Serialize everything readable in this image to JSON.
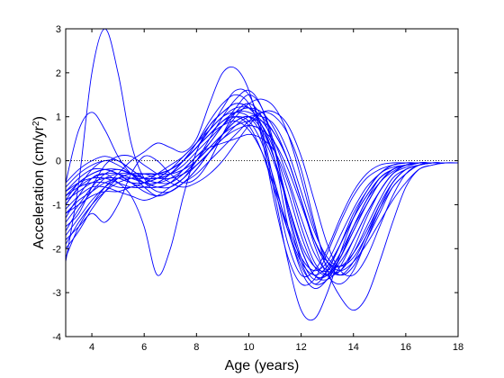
{
  "chart_data": {
    "type": "line",
    "xlabel": "Age (years)",
    "ylabel_main": "Acceleration (cm/yr",
    "ylabel_sup": "2",
    "ylabel_close": ")",
    "xlim": [
      3,
      18
    ],
    "ylim": [
      -4,
      3
    ],
    "x_ticks": [
      4,
      6,
      8,
      10,
      12,
      14,
      16,
      18
    ],
    "y_ticks": [
      -4,
      -3,
      -2,
      -1,
      0,
      1,
      2,
      3
    ],
    "x_tick_labels": [
      "4",
      "6",
      "8",
      "10",
      "12",
      "14",
      "16",
      "18"
    ],
    "y_tick_labels": [
      "-4",
      "-3",
      "-2",
      "-1",
      "0",
      "1",
      "2",
      "3"
    ],
    "zero_line": {
      "y": 0,
      "style": "dotted"
    },
    "grid": false,
    "line_color": "#0000ff",
    "x": [
      3,
      3.5,
      4,
      4.5,
      5,
      5.5,
      6,
      6.5,
      7,
      7.5,
      8,
      8.5,
      9,
      9.5,
      10,
      10.5,
      11,
      11.5,
      12,
      12.5,
      13,
      13.5,
      14,
      14.5,
      15,
      15.5,
      16,
      16.5,
      17,
      17.5,
      18
    ],
    "series": [
      {
        "values": [
          -2.3,
          -0.5,
          2.0,
          3.0,
          2.0,
          0.4,
          -0.4,
          -0.6,
          -0.5,
          -0.3,
          0.0,
          0.4,
          0.8,
          1.2,
          1.5,
          1.2,
          0.3,
          -1.2,
          -2.3,
          -2.8,
          -2.5,
          -1.9,
          -1.3,
          -0.8,
          -0.4,
          -0.2,
          -0.1,
          -0.05,
          -0.05,
          -0.05,
          -0.05
        ]
      },
      {
        "values": [
          -1.3,
          -0.8,
          -0.4,
          -0.3,
          -0.5,
          -0.8,
          -1.5,
          -2.6,
          -2.0,
          -0.8,
          0.2,
          0.8,
          1.1,
          1.3,
          1.2,
          0.8,
          0.0,
          -1.5,
          -2.5,
          -2.9,
          -2.7,
          -2.2,
          -1.6,
          -1.0,
          -0.5,
          -0.2,
          -0.1,
          -0.05,
          -0.05,
          -0.05,
          -0.05
        ]
      },
      {
        "values": [
          -2.2,
          -1.5,
          -1.0,
          -0.6,
          -0.3,
          0.0,
          0.2,
          0.4,
          0.3,
          0.2,
          0.5,
          1.3,
          2.0,
          2.1,
          1.6,
          0.5,
          -1.0,
          -2.2,
          -2.8,
          -2.7,
          -2.1,
          -1.4,
          -0.8,
          -0.4,
          -0.2,
          -0.1,
          -0.05,
          -0.05,
          -0.05,
          -0.05,
          -0.05
        ]
      },
      {
        "values": [
          -0.5,
          0.7,
          1.1,
          0.7,
          0.1,
          -0.3,
          -0.5,
          -0.5,
          -0.3,
          0.0,
          0.3,
          0.7,
          1.0,
          1.2,
          1.2,
          1.0,
          0.6,
          0.0,
          -0.9,
          -1.8,
          -2.4,
          -2.6,
          -2.3,
          -1.7,
          -1.0,
          -0.5,
          -0.2,
          -0.1,
          -0.05,
          -0.05,
          -0.05
        ]
      },
      {
        "values": [
          -1.0,
          -0.6,
          -0.2,
          0.0,
          -0.1,
          -0.3,
          -0.6,
          -0.8,
          -0.7,
          -0.5,
          -0.3,
          0.0,
          0.3,
          0.6,
          0.9,
          1.1,
          1.0,
          0.6,
          -0.2,
          -1.4,
          -2.5,
          -3.1,
          -3.4,
          -3.1,
          -2.3,
          -1.4,
          -0.6,
          -0.2,
          -0.1,
          -0.05,
          -0.05
        ]
      },
      {
        "values": [
          -0.8,
          -0.5,
          -0.3,
          -0.2,
          -0.2,
          -0.3,
          -0.4,
          -0.4,
          -0.3,
          0.0,
          0.4,
          0.9,
          1.3,
          1.5,
          1.3,
          0.6,
          -0.8,
          -2.3,
          -3.4,
          -3.6,
          -3.0,
          -2.1,
          -1.3,
          -0.7,
          -0.3,
          -0.15,
          -0.1,
          -0.05,
          -0.05,
          -0.05,
          -0.05
        ]
      },
      {
        "values": [
          -1.5,
          -1.2,
          -0.6,
          -0.1,
          0.1,
          0.1,
          -0.1,
          -0.3,
          -0.5,
          -0.6,
          -0.5,
          -0.3,
          0.0,
          0.4,
          0.8,
          1.1,
          1.1,
          0.8,
          0.1,
          -0.9,
          -1.9,
          -2.5,
          -2.6,
          -2.2,
          -1.5,
          -0.8,
          -0.3,
          -0.1,
          -0.05,
          -0.05,
          -0.05
        ]
      },
      {
        "values": [
          -1.8,
          -1.5,
          -1.2,
          -1.4,
          -1.0,
          -0.3,
          0.1,
          0.0,
          -0.3,
          -0.5,
          -0.4,
          0.0,
          0.6,
          1.1,
          1.3,
          1.0,
          0.2,
          -1.1,
          -2.2,
          -2.7,
          -2.5,
          -1.9,
          -1.2,
          -0.7,
          -0.3,
          -0.1,
          -0.05,
          -0.05,
          -0.05,
          -0.05,
          -0.05
        ]
      },
      {
        "values": [
          -1.0,
          -0.6,
          -0.4,
          -0.3,
          -0.3,
          -0.4,
          -0.5,
          -0.6,
          -0.6,
          -0.4,
          0.0,
          0.5,
          1.0,
          1.4,
          1.6,
          1.2,
          0.2,
          -1.0,
          -2.0,
          -2.6,
          -2.6,
          -2.2,
          -1.6,
          -1.0,
          -0.5,
          -0.2,
          -0.1,
          -0.05,
          -0.05,
          -0.05,
          -0.05
        ]
      },
      {
        "values": [
          -0.6,
          -0.3,
          -0.1,
          0.0,
          0.0,
          -0.2,
          -0.4,
          -0.5,
          -0.5,
          -0.3,
          0.0,
          0.3,
          0.6,
          0.8,
          0.9,
          0.9,
          0.6,
          0.0,
          -0.9,
          -1.9,
          -2.6,
          -2.8,
          -2.5,
          -1.8,
          -1.1,
          -0.5,
          -0.2,
          -0.1,
          -0.05,
          -0.05,
          -0.05
        ]
      },
      {
        "values": [
          -1.2,
          -0.9,
          -0.7,
          -0.5,
          -0.4,
          -0.4,
          -0.4,
          -0.3,
          -0.2,
          0.0,
          0.3,
          0.7,
          1.2,
          1.6,
          1.5,
          0.7,
          -0.6,
          -1.9,
          -2.6,
          -2.5,
          -2.0,
          -1.3,
          -0.7,
          -0.3,
          -0.1,
          -0.05,
          -0.05,
          -0.05,
          -0.05,
          -0.05,
          -0.05
        ]
      },
      {
        "values": [
          -0.7,
          -0.4,
          -0.2,
          -0.2,
          -0.3,
          -0.5,
          -0.6,
          -0.6,
          -0.5,
          -0.2,
          0.1,
          0.3,
          0.4,
          0.5,
          0.6,
          0.5,
          0.2,
          -0.5,
          -1.5,
          -2.3,
          -2.6,
          -2.5,
          -2.0,
          -1.3,
          -0.7,
          -0.3,
          -0.1,
          -0.05,
          -0.05,
          -0.05,
          -0.05
        ]
      },
      {
        "values": [
          -1.9,
          -1.4,
          -1.0,
          -0.7,
          -0.5,
          -0.4,
          -0.3,
          -0.3,
          -0.3,
          -0.2,
          0.0,
          0.3,
          0.6,
          0.9,
          1.0,
          0.8,
          0.2,
          -0.7,
          -1.7,
          -2.4,
          -2.6,
          -2.3,
          -1.8,
          -1.2,
          -0.7,
          -0.3,
          -0.15,
          -0.05,
          -0.05,
          -0.05,
          -0.05
        ]
      },
      {
        "values": [
          -0.9,
          -0.7,
          -0.5,
          -0.4,
          -0.4,
          -0.5,
          -0.5,
          -0.4,
          -0.2,
          0.1,
          0.4,
          0.8,
          1.1,
          1.3,
          1.2,
          0.8,
          0.0,
          -1.0,
          -2.0,
          -2.6,
          -2.7,
          -2.4,
          -1.8,
          -1.2,
          -0.7,
          -0.3,
          -0.1,
          -0.05,
          -0.05,
          -0.05,
          -0.05
        ]
      },
      {
        "values": [
          -1.1,
          -0.8,
          -0.6,
          -0.6,
          -0.7,
          -0.8,
          -0.9,
          -0.8,
          -0.6,
          -0.4,
          -0.1,
          0.2,
          0.5,
          0.8,
          1.0,
          1.0,
          0.8,
          0.2,
          -0.7,
          -1.6,
          -2.2,
          -2.4,
          -2.2,
          -1.7,
          -1.1,
          -0.6,
          -0.3,
          -0.1,
          -0.05,
          -0.05,
          -0.05
        ]
      },
      {
        "values": [
          -1.6,
          -1.1,
          -0.7,
          -0.4,
          -0.3,
          -0.3,
          -0.4,
          -0.4,
          -0.3,
          -0.1,
          0.2,
          0.5,
          0.8,
          1.0,
          0.9,
          0.4,
          -0.5,
          -1.6,
          -2.4,
          -2.8,
          -2.7,
          -2.2,
          -1.5,
          -0.9,
          -0.4,
          -0.2,
          -0.1,
          -0.05,
          -0.05,
          -0.05,
          -0.05
        ]
      },
      {
        "values": [
          -0.5,
          -0.2,
          0.0,
          0.1,
          0.0,
          -0.2,
          -0.4,
          -0.5,
          -0.4,
          -0.2,
          0.1,
          0.4,
          0.8,
          1.1,
          1.2,
          1.1,
          0.7,
          0.0,
          -0.9,
          -1.8,
          -2.3,
          -2.4,
          -2.1,
          -1.6,
          -1.0,
          -0.5,
          -0.2,
          -0.1,
          -0.05,
          -0.05,
          -0.05
        ]
      },
      {
        "values": [
          -1.4,
          -1.0,
          -0.6,
          -0.3,
          -0.2,
          -0.3,
          -0.5,
          -0.7,
          -0.7,
          -0.5,
          -0.2,
          0.2,
          0.6,
          0.9,
          1.0,
          0.7,
          0.0,
          -1.0,
          -2.0,
          -2.6,
          -2.6,
          -2.1,
          -1.5,
          -0.9,
          -0.5,
          -0.2,
          -0.1,
          -0.05,
          -0.05,
          -0.05,
          -0.05
        ]
      },
      {
        "values": [
          -0.8,
          -0.6,
          -0.5,
          -0.5,
          -0.6,
          -0.6,
          -0.5,
          -0.4,
          -0.2,
          0.0,
          0.3,
          0.6,
          0.9,
          1.0,
          0.8,
          0.2,
          -0.7,
          -1.6,
          -2.3,
          -2.6,
          -2.4,
          -1.9,
          -1.3,
          -0.8,
          -0.4,
          -0.2,
          -0.1,
          -0.05,
          -0.05,
          -0.05,
          -0.05
        ]
      },
      {
        "values": [
          -1.7,
          -1.3,
          -0.9,
          -0.6,
          -0.4,
          -0.3,
          -0.3,
          -0.4,
          -0.4,
          -0.3,
          -0.1,
          0.2,
          0.6,
          1.0,
          1.3,
          1.4,
          1.2,
          0.6,
          -0.4,
          -1.5,
          -2.3,
          -2.6,
          -2.4,
          -1.8,
          -1.2,
          -0.6,
          -0.3,
          -0.1,
          -0.05,
          -0.05,
          -0.05
        ]
      },
      {
        "values": [
          -1.2,
          -1.0,
          -0.8,
          -0.7,
          -0.7,
          -0.6,
          -0.5,
          -0.3,
          -0.1,
          0.1,
          0.4,
          0.7,
          1.0,
          1.1,
          1.0,
          0.6,
          -0.1,
          -1.0,
          -1.9,
          -2.4,
          -2.5,
          -2.1,
          -1.5,
          -1.0,
          -0.5,
          -0.25,
          -0.1,
          -0.05,
          -0.05,
          -0.05,
          -0.05
        ]
      },
      {
        "values": [
          -0.9,
          -0.5,
          -0.3,
          -0.2,
          -0.3,
          -0.5,
          -0.7,
          -0.8,
          -0.7,
          -0.5,
          -0.2,
          0.2,
          0.5,
          0.7,
          0.8,
          0.7,
          0.4,
          -0.2,
          -1.0,
          -1.8,
          -2.3,
          -2.5,
          -2.3,
          -1.9,
          -1.4,
          -0.9,
          -0.5,
          -0.2,
          -0.1,
          -0.05,
          -0.05
        ]
      },
      {
        "values": [
          -2.0,
          -1.6,
          -1.1,
          -0.7,
          -0.4,
          -0.3,
          -0.3,
          -0.3,
          -0.2,
          0.0,
          0.3,
          0.6,
          0.8,
          0.9,
          0.7,
          0.2,
          -0.6,
          -1.5,
          -2.2,
          -2.5,
          -2.3,
          -1.7,
          -1.1,
          -0.6,
          -0.3,
          -0.1,
          -0.05,
          -0.05,
          -0.05,
          -0.05,
          -0.05
        ]
      },
      {
        "values": [
          -0.7,
          -0.5,
          -0.4,
          -0.4,
          -0.5,
          -0.6,
          -0.6,
          -0.5,
          -0.3,
          0.0,
          0.3,
          0.6,
          0.9,
          1.1,
          1.1,
          0.9,
          0.4,
          -0.4,
          -1.3,
          -2.1,
          -2.5,
          -2.5,
          -2.1,
          -1.5,
          -0.9,
          -0.4,
          -0.2,
          -0.1,
          -0.05,
          -0.05,
          -0.05
        ]
      }
    ]
  }
}
